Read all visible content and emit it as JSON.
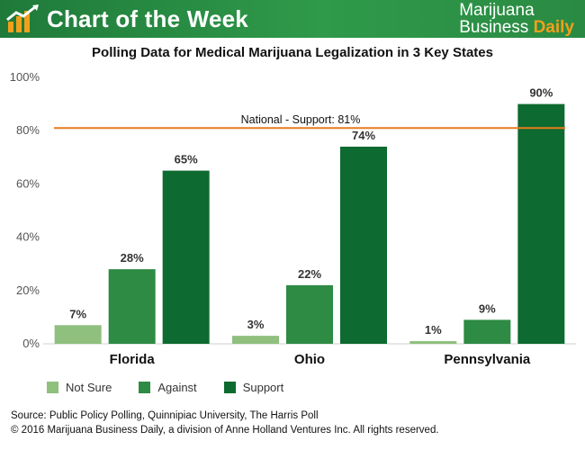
{
  "header": {
    "title": "Chart of the Week",
    "brand_line1": "Marijuana",
    "brand_line2a": "Business ",
    "brand_line2b": "Daily"
  },
  "colors": {
    "header_green": "#2a8a43",
    "not_sure": "#8fc07e",
    "against": "#2e8b44",
    "support": "#0d6a30",
    "national_line": "#e87c1e",
    "brand_accent": "#f2a01a"
  },
  "chart_data": {
    "type": "bar",
    "title": "Polling Data for Medical Marijuana Legalization in 3 Key States",
    "categories": [
      "Florida",
      "Ohio",
      "Pennsylvania"
    ],
    "series": [
      {
        "name": "Not Sure",
        "values": [
          7,
          3,
          1
        ],
        "labels": [
          "7%",
          "3%",
          "1%"
        ]
      },
      {
        "name": "Against",
        "values": [
          28,
          22,
          9
        ],
        "labels": [
          "28%",
          "22%",
          "9%"
        ]
      },
      {
        "name": "Support",
        "values": [
          65,
          74,
          90
        ],
        "labels": [
          "65%",
          "74%",
          "90%"
        ]
      }
    ],
    "ylim": [
      0,
      100
    ],
    "yticks": [
      0,
      20,
      40,
      60,
      80,
      100
    ],
    "ytick_labels": [
      "0%",
      "20%",
      "40%",
      "60%",
      "80%",
      "100%"
    ],
    "reference_line": {
      "value": 81,
      "label": "National - Support: 81%"
    },
    "legend": "bottom-left",
    "grid": false
  },
  "source": {
    "line1": "Source: Public Policy Polling, Quinnipiac University, The Harris Poll",
    "line2": "© 2016 Marijuana Business Daily, a division of Anne Holland Ventures Inc. All rights reserved."
  }
}
